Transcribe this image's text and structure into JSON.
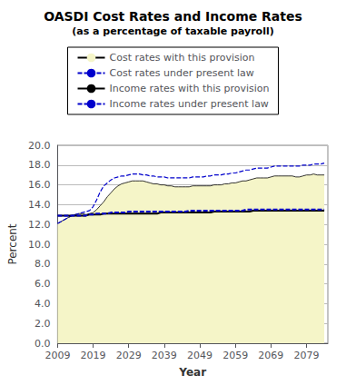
{
  "chart_data": {
    "type": "line",
    "title": "OASDI Cost Rates and Income Rates",
    "subtitle": "(as a percentage of taxable payroll)",
    "xlabel": "Year",
    "ylabel": "Percent",
    "xlim": [
      2009,
      2085
    ],
    "ylim": [
      0.0,
      20.0
    ],
    "xticks": [
      2009,
      2019,
      2029,
      2039,
      2049,
      2059,
      2069,
      2079
    ],
    "yticks": [
      {
        "value": 0.0,
        "label": "0.0"
      },
      {
        "value": 2.0,
        "label": "2.0"
      },
      {
        "value": 4.0,
        "label": "4.0"
      },
      {
        "value": 6.0,
        "label": "6.0"
      },
      {
        "value": 8.0,
        "label": "8.0"
      },
      {
        "value": 10.0,
        "label": "10.0"
      },
      {
        "value": 12.0,
        "label": "12.0"
      },
      {
        "value": 14.0,
        "label": "14.0"
      },
      {
        "value": 16.0,
        "label": "16.0"
      },
      {
        "value": 18.0,
        "label": "18.0"
      },
      {
        "value": 20.0,
        "label": "20.0"
      }
    ],
    "grid": true,
    "legend": "top",
    "x": [
      2009,
      2010,
      2011,
      2012,
      2013,
      2014,
      2015,
      2016,
      2017,
      2018,
      2019,
      2020,
      2021,
      2022,
      2023,
      2024,
      2025,
      2026,
      2027,
      2028,
      2029,
      2030,
      2031,
      2032,
      2033,
      2034,
      2035,
      2036,
      2037,
      2038,
      2039,
      2040,
      2041,
      2042,
      2043,
      2044,
      2045,
      2046,
      2047,
      2048,
      2049,
      2050,
      2051,
      2052,
      2053,
      2054,
      2055,
      2056,
      2057,
      2058,
      2059,
      2060,
      2061,
      2062,
      2063,
      2064,
      2065,
      2066,
      2067,
      2068,
      2069,
      2070,
      2071,
      2072,
      2073,
      2074,
      2075,
      2076,
      2077,
      2078,
      2079,
      2080,
      2081,
      2082,
      2083,
      2084
    ],
    "series": [
      {
        "name": "Cost rates with this provision",
        "type": "area",
        "color": "#f5f5c8",
        "line_style": "solid",
        "values": [
          12.1,
          12.3,
          12.5,
          12.7,
          12.9,
          13.0,
          13.1,
          13.1,
          13.0,
          13.1,
          13.2,
          13.5,
          13.9,
          14.3,
          14.8,
          15.2,
          15.6,
          15.9,
          16.1,
          16.2,
          16.3,
          16.4,
          16.4,
          16.4,
          16.4,
          16.3,
          16.2,
          16.1,
          16.1,
          16.0,
          16.0,
          15.9,
          15.9,
          15.8,
          15.8,
          15.8,
          15.8,
          15.8,
          15.9,
          15.9,
          15.9,
          15.9,
          15.9,
          15.9,
          16.0,
          16.0,
          16.0,
          16.1,
          16.1,
          16.2,
          16.2,
          16.3,
          16.4,
          16.4,
          16.5,
          16.6,
          16.7,
          16.7,
          16.7,
          16.7,
          16.8,
          16.9,
          16.9,
          16.9,
          16.9,
          16.9,
          16.9,
          16.8,
          16.8,
          16.9,
          17.0,
          17.0,
          17.1,
          17.0,
          17.0,
          17.0
        ]
      },
      {
        "name": "Cost rates under present law",
        "type": "line",
        "color": "#0000cc",
        "line_style": "dashed",
        "values": [
          12.1,
          12.3,
          12.5,
          12.7,
          12.9,
          13.0,
          13.1,
          13.2,
          13.3,
          13.4,
          13.8,
          14.5,
          15.3,
          15.9,
          16.2,
          16.5,
          16.7,
          16.8,
          16.9,
          16.9,
          17.0,
          17.1,
          17.1,
          17.1,
          17.0,
          17.0,
          16.9,
          16.9,
          16.8,
          16.8,
          16.8,
          16.7,
          16.7,
          16.7,
          16.7,
          16.7,
          16.7,
          16.7,
          16.8,
          16.8,
          16.8,
          16.8,
          16.9,
          16.9,
          17.0,
          17.0,
          17.0,
          17.1,
          17.1,
          17.2,
          17.2,
          17.3,
          17.4,
          17.5,
          17.5,
          17.6,
          17.7,
          17.7,
          17.7,
          17.7,
          17.8,
          17.9,
          17.9,
          17.9,
          17.9,
          17.9,
          17.9,
          17.9,
          17.9,
          18.0,
          18.0,
          18.0,
          18.1,
          18.1,
          18.1,
          18.2
        ]
      },
      {
        "name": "Income rates with this provision",
        "type": "line",
        "color": "#000000",
        "line_style": "solid",
        "values": [
          12.9,
          12.9,
          12.9,
          12.9,
          12.9,
          12.9,
          12.9,
          12.9,
          12.9,
          13.0,
          13.0,
          13.0,
          13.0,
          13.1,
          13.1,
          13.1,
          13.1,
          13.1,
          13.1,
          13.1,
          13.1,
          13.1,
          13.1,
          13.1,
          13.1,
          13.1,
          13.1,
          13.1,
          13.1,
          13.2,
          13.2,
          13.2,
          13.2,
          13.2,
          13.2,
          13.2,
          13.2,
          13.2,
          13.2,
          13.2,
          13.2,
          13.2,
          13.2,
          13.2,
          13.3,
          13.3,
          13.3,
          13.3,
          13.3,
          13.3,
          13.3,
          13.3,
          13.3,
          13.3,
          13.3,
          13.4,
          13.4,
          13.4,
          13.4,
          13.4,
          13.4,
          13.4,
          13.4,
          13.4,
          13.4,
          13.4,
          13.4,
          13.4,
          13.4,
          13.4,
          13.4,
          13.4,
          13.4,
          13.4,
          13.4,
          13.4
        ]
      },
      {
        "name": "Income rates under present law",
        "type": "line",
        "color": "#0000cc",
        "line_style": "dashed",
        "values": [
          12.9,
          12.9,
          12.9,
          12.9,
          12.9,
          12.9,
          12.9,
          12.9,
          12.9,
          13.0,
          13.0,
          13.1,
          13.1,
          13.1,
          13.1,
          13.2,
          13.2,
          13.2,
          13.2,
          13.2,
          13.3,
          13.3,
          13.3,
          13.3,
          13.3,
          13.3,
          13.3,
          13.3,
          13.3,
          13.3,
          13.3,
          13.3,
          13.3,
          13.3,
          13.3,
          13.3,
          13.3,
          13.4,
          13.4,
          13.4,
          13.4,
          13.4,
          13.4,
          13.4,
          13.4,
          13.4,
          13.4,
          13.4,
          13.4,
          13.4,
          13.4,
          13.4,
          13.4,
          13.5,
          13.5,
          13.5,
          13.5,
          13.5,
          13.5,
          13.5,
          13.5,
          13.5,
          13.5,
          13.5,
          13.5,
          13.5,
          13.5,
          13.5,
          13.5,
          13.5,
          13.5,
          13.5,
          13.5,
          13.5,
          13.5,
          13.5
        ]
      }
    ]
  }
}
